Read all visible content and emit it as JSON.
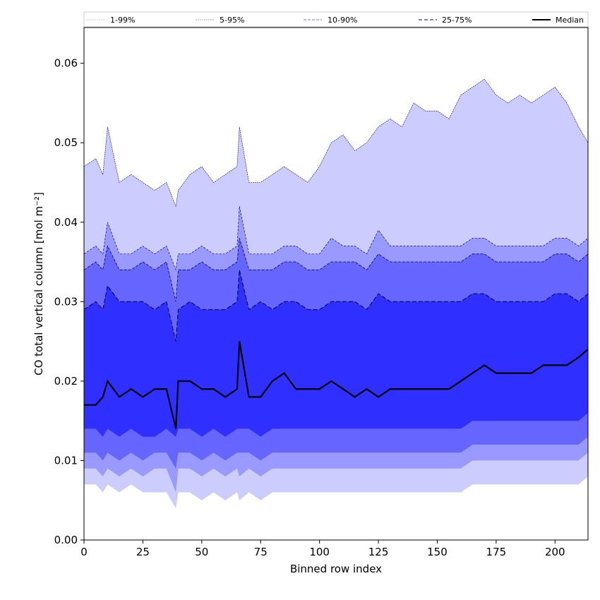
{
  "chart_data": {
    "type": "area",
    "title": "",
    "xlabel": "Binned row index",
    "ylabel": "CO total vertical column [mol m⁻²]",
    "xlim": [
      0,
      214
    ],
    "ylim": [
      0.0,
      0.0645
    ],
    "xticks": [
      0,
      25,
      50,
      75,
      100,
      125,
      150,
      175,
      200
    ],
    "yticks": [
      0.0,
      0.01,
      0.02,
      0.03,
      0.04,
      0.05,
      0.06
    ],
    "ytick_labels": [
      "0.00",
      "0.01",
      "0.02",
      "0.03",
      "0.04",
      "0.05",
      "0.06"
    ],
    "grid": false,
    "legend_position": "top",
    "colors": {
      "band_1_99": "#ccccff",
      "band_5_95": "#9999ff",
      "band_10_90": "#6666ff",
      "band_25_75": "#2f2fff",
      "median": "#000000"
    },
    "series": [
      {
        "name": "1-99%"
      },
      {
        "name": "5-95%"
      },
      {
        "name": "10-90%"
      },
      {
        "name": "25-75%"
      },
      {
        "name": "Median"
      }
    ],
    "x": [
      0,
      5,
      8,
      10,
      15,
      20,
      25,
      30,
      35,
      39,
      40,
      45,
      50,
      55,
      60,
      65,
      66,
      70,
      75,
      80,
      85,
      90,
      95,
      100,
      105,
      110,
      115,
      120,
      125,
      130,
      135,
      140,
      145,
      150,
      155,
      160,
      165,
      170,
      175,
      180,
      185,
      190,
      195,
      200,
      205,
      210,
      214
    ],
    "p99": [
      0.047,
      0.048,
      0.046,
      0.052,
      0.045,
      0.046,
      0.045,
      0.044,
      0.045,
      0.042,
      0.044,
      0.046,
      0.047,
      0.045,
      0.046,
      0.047,
      0.052,
      0.045,
      0.045,
      0.046,
      0.047,
      0.046,
      0.045,
      0.047,
      0.05,
      0.051,
      0.049,
      0.05,
      0.052,
      0.053,
      0.052,
      0.055,
      0.054,
      0.054,
      0.053,
      0.056,
      0.057,
      0.058,
      0.056,
      0.055,
      0.056,
      0.055,
      0.056,
      0.057,
      0.055,
      0.052,
      0.05
    ],
    "p95": [
      0.036,
      0.037,
      0.036,
      0.04,
      0.036,
      0.036,
      0.037,
      0.036,
      0.037,
      0.034,
      0.036,
      0.036,
      0.037,
      0.036,
      0.036,
      0.037,
      0.042,
      0.036,
      0.036,
      0.036,
      0.037,
      0.037,
      0.036,
      0.036,
      0.038,
      0.037,
      0.037,
      0.036,
      0.039,
      0.037,
      0.037,
      0.037,
      0.037,
      0.037,
      0.037,
      0.037,
      0.038,
      0.038,
      0.037,
      0.037,
      0.037,
      0.037,
      0.037,
      0.038,
      0.038,
      0.037,
      0.038
    ],
    "p90": [
      0.034,
      0.035,
      0.034,
      0.037,
      0.034,
      0.034,
      0.035,
      0.034,
      0.035,
      0.03,
      0.034,
      0.034,
      0.035,
      0.034,
      0.034,
      0.035,
      0.038,
      0.034,
      0.034,
      0.034,
      0.035,
      0.035,
      0.034,
      0.034,
      0.035,
      0.035,
      0.035,
      0.034,
      0.036,
      0.035,
      0.035,
      0.035,
      0.035,
      0.035,
      0.035,
      0.035,
      0.036,
      0.036,
      0.035,
      0.035,
      0.035,
      0.035,
      0.035,
      0.036,
      0.036,
      0.035,
      0.036
    ],
    "p75": [
      0.029,
      0.03,
      0.029,
      0.032,
      0.03,
      0.03,
      0.03,
      0.029,
      0.03,
      0.025,
      0.029,
      0.03,
      0.029,
      0.029,
      0.029,
      0.03,
      0.034,
      0.029,
      0.03,
      0.029,
      0.03,
      0.03,
      0.029,
      0.029,
      0.03,
      0.03,
      0.03,
      0.029,
      0.031,
      0.03,
      0.03,
      0.03,
      0.03,
      0.03,
      0.03,
      0.03,
      0.031,
      0.031,
      0.03,
      0.03,
      0.03,
      0.03,
      0.03,
      0.031,
      0.031,
      0.03,
      0.031
    ],
    "median": [
      0.017,
      0.017,
      0.018,
      0.02,
      0.018,
      0.019,
      0.018,
      0.019,
      0.019,
      0.014,
      0.02,
      0.02,
      0.019,
      0.019,
      0.018,
      0.019,
      0.025,
      0.018,
      0.018,
      0.02,
      0.021,
      0.019,
      0.019,
      0.019,
      0.02,
      0.019,
      0.018,
      0.019,
      0.018,
      0.019,
      0.019,
      0.019,
      0.019,
      0.019,
      0.019,
      0.02,
      0.021,
      0.022,
      0.021,
      0.021,
      0.021,
      0.021,
      0.022,
      0.022,
      0.022,
      0.023,
      0.024
    ],
    "p25": [
      0.014,
      0.014,
      0.013,
      0.014,
      0.013,
      0.014,
      0.013,
      0.013,
      0.014,
      0.013,
      0.014,
      0.014,
      0.013,
      0.014,
      0.013,
      0.014,
      0.014,
      0.014,
      0.013,
      0.014,
      0.014,
      0.014,
      0.014,
      0.014,
      0.014,
      0.014,
      0.014,
      0.014,
      0.014,
      0.014,
      0.014,
      0.014,
      0.014,
      0.014,
      0.014,
      0.014,
      0.015,
      0.015,
      0.015,
      0.015,
      0.015,
      0.015,
      0.015,
      0.015,
      0.015,
      0.015,
      0.016
    ],
    "p10": [
      0.011,
      0.011,
      0.01,
      0.011,
      0.01,
      0.011,
      0.01,
      0.011,
      0.011,
      0.009,
      0.011,
      0.011,
      0.01,
      0.011,
      0.01,
      0.011,
      0.011,
      0.011,
      0.01,
      0.011,
      0.011,
      0.011,
      0.011,
      0.011,
      0.011,
      0.011,
      0.011,
      0.011,
      0.011,
      0.011,
      0.011,
      0.011,
      0.011,
      0.011,
      0.011,
      0.011,
      0.012,
      0.012,
      0.012,
      0.012,
      0.012,
      0.012,
      0.012,
      0.012,
      0.012,
      0.012,
      0.013
    ],
    "p5": [
      0.009,
      0.009,
      0.008,
      0.009,
      0.008,
      0.009,
      0.008,
      0.009,
      0.009,
      0.006,
      0.009,
      0.009,
      0.008,
      0.009,
      0.008,
      0.009,
      0.008,
      0.009,
      0.008,
      0.009,
      0.009,
      0.009,
      0.009,
      0.009,
      0.009,
      0.009,
      0.009,
      0.009,
      0.009,
      0.009,
      0.009,
      0.009,
      0.009,
      0.009,
      0.009,
      0.009,
      0.01,
      0.01,
      0.01,
      0.01,
      0.01,
      0.01,
      0.01,
      0.01,
      0.01,
      0.01,
      0.011
    ],
    "p1": [
      0.007,
      0.007,
      0.006,
      0.007,
      0.006,
      0.007,
      0.006,
      0.006,
      0.006,
      0.004,
      0.006,
      0.006,
      0.005,
      0.006,
      0.005,
      0.006,
      0.005,
      0.006,
      0.005,
      0.006,
      0.006,
      0.006,
      0.006,
      0.006,
      0.006,
      0.006,
      0.006,
      0.006,
      0.006,
      0.006,
      0.006,
      0.006,
      0.006,
      0.006,
      0.006,
      0.006,
      0.007,
      0.007,
      0.007,
      0.007,
      0.007,
      0.007,
      0.007,
      0.007,
      0.007,
      0.007,
      0.008
    ]
  }
}
